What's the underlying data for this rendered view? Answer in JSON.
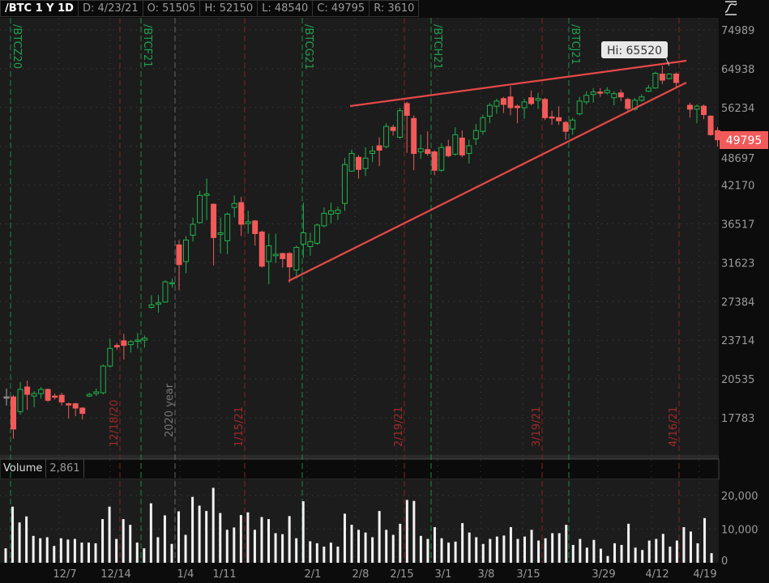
{
  "header": {
    "symbol": "/BTC 1 Y 1D",
    "date": "D: 4/23/21",
    "open": "O: 51505",
    "high": "H: 52150",
    "low": "L: 48540",
    "close": "C: 49795",
    "range": "R: 3610"
  },
  "toolbar": {
    "style_icon": "chart-style-icon"
  },
  "price_panel": {
    "hi_label": "Hi: 65520",
    "last_price": "49795",
    "last_price_color": "#f25a5a",
    "up_color": "#22b14c",
    "down_color": "#f25a5a",
    "trendline_color": "#e84848",
    "y_scale": "log",
    "y_ticks": [
      "74989",
      "64938",
      "56234",
      "48697",
      "42170",
      "36517",
      "31623",
      "27384",
      "23714",
      "20535",
      "17783"
    ],
    "expiry_lines": [
      "/BTCZ20",
      "/BTCF21",
      "/BTCG21",
      "/BTCH21",
      "/BTCJ21"
    ],
    "settlement_lines": [
      "12/18/20",
      "1/15/21",
      "2/19/21",
      "3/19/21",
      "4/16/21"
    ],
    "year_line": "2020 year"
  },
  "chart_data": {
    "type": "candlestick",
    "series_ohlc": [
      [
        19215,
        19815,
        18615,
        19215
      ],
      [
        19215,
        19335,
        16460,
        17060
      ],
      [
        18195,
        20295,
        17995,
        19755
      ],
      [
        19935,
        20415,
        18315,
        19395
      ],
      [
        19275,
        19635,
        18495,
        19455
      ],
      [
        19455,
        19935,
        19095,
        19755
      ],
      [
        19755,
        19815,
        18855,
        18975
      ],
      [
        19275,
        19455,
        19035,
        19215
      ],
      [
        19335,
        19515,
        18615,
        18855
      ],
      [
        18735,
        18795,
        17730,
        18675
      ],
      [
        18735,
        18795,
        17895,
        18435
      ],
      [
        18435,
        18495,
        17680,
        18075
      ],
      [
        19275,
        19515,
        19215,
        19395
      ],
      [
        19455,
        19815,
        19275,
        19575
      ],
      [
        19515,
        21660,
        19395,
        21540
      ],
      [
        21540,
        23850,
        21400,
        22990
      ],
      [
        23250,
        23450,
        22860,
        23120
      ],
      [
        23650,
        24270,
        22064,
        23250
      ],
      [
        23320,
        23714,
        22660,
        23580
      ],
      [
        23650,
        24350,
        22990,
        23714
      ],
      [
        23714,
        24116,
        23054,
        23888
      ],
      [
        26776,
        28000,
        26624,
        27004
      ],
      [
        27080,
        28015,
        26244,
        27232
      ],
      [
        27308,
        29599,
        27232,
        29423
      ],
      [
        29247,
        29775,
        28807,
        29335
      ],
      [
        33736,
        34354,
        28543,
        31359
      ],
      [
        31718,
        34869,
        30391,
        34354
      ],
      [
        34972,
        37332,
        34148,
        36414
      ],
      [
        36636,
        41226,
        36517,
        40518
      ],
      [
        40518,
        43121,
        36990,
        40754
      ],
      [
        39220,
        39338,
        31271,
        34663
      ],
      [
        35075,
        37332,
        32679,
        35281
      ],
      [
        34251,
        38040,
        32591,
        37800
      ],
      [
        38748,
        40518,
        37332,
        39338
      ],
      [
        39456,
        40282,
        34869,
        36414
      ],
      [
        36517,
        38276,
        35178,
        36754
      ],
      [
        36872,
        36990,
        33633,
        35178
      ],
      [
        35384,
        35590,
        31007,
        31183
      ],
      [
        31718,
        35178,
        29159,
        33633
      ],
      [
        32415,
        35178,
        31535,
        32591
      ],
      [
        32679,
        32767,
        31007,
        32063
      ],
      [
        32679,
        32855,
        29335,
        31095
      ],
      [
        30743,
        33633,
        29775,
        33427
      ],
      [
        33839,
        39456,
        32151,
        35281
      ],
      [
        33530,
        35281,
        32415,
        34148
      ],
      [
        33942,
        36517,
        33736,
        36311
      ],
      [
        36208,
        38748,
        35998,
        37922
      ],
      [
        37800,
        39456,
        36517,
        38276
      ],
      [
        37922,
        38866,
        36990,
        38394
      ],
      [
        39338,
        46521,
        38276,
        45433
      ],
      [
        44345,
        48017,
        44209,
        47337
      ],
      [
        46657,
        47065,
        43121,
        44617
      ],
      [
        44753,
        48425,
        43529,
        46521
      ],
      [
        47337,
        48697,
        45841,
        47745
      ],
      [
        48697,
        50264,
        45161,
        47912
      ],
      [
        48540,
        52937,
        48226,
        52309
      ],
      [
        52152,
        52623,
        50578,
        51524
      ],
      [
        50264,
        56077,
        49950,
        55449
      ],
      [
        56946,
        57302,
        47441,
        54507
      ],
      [
        53879,
        54507,
        44481,
        47337
      ],
      [
        47609,
        50735,
        46385,
        48153
      ],
      [
        48017,
        51363,
        46929,
        47337
      ],
      [
        47609,
        47881,
        43665,
        44481
      ],
      [
        44481,
        49172,
        44209,
        48383
      ],
      [
        48540,
        49799,
        46657,
        46929
      ],
      [
        47201,
        52152,
        46929,
        50735
      ],
      [
        50107,
        51524,
        46657,
        47065
      ],
      [
        47337,
        49799,
        45569,
        48697
      ],
      [
        49950,
        52780,
        48854,
        51524
      ],
      [
        51367,
        54664,
        50735,
        54036
      ],
      [
        54350,
        57106,
        52937,
        56572
      ],
      [
        56394,
        57996,
        54821,
        57462
      ],
      [
        57996,
        58352,
        54978,
        56750
      ],
      [
        58352,
        60666,
        54507,
        56077
      ],
      [
        56394,
        56750,
        52937,
        56077
      ],
      [
        56077,
        57996,
        53879,
        57284
      ],
      [
        58174,
        59776,
        56572,
        56928
      ],
      [
        57640,
        59242,
        55763,
        57996
      ],
      [
        57818,
        58174,
        53565,
        54036
      ],
      [
        54193,
        55449,
        52623,
        54036
      ],
      [
        54036,
        56394,
        52623,
        53409
      ],
      [
        53094,
        53409,
        49799,
        51367
      ],
      [
        51838,
        54036,
        50735,
        53565
      ],
      [
        54821,
        58352,
        54507,
        57462
      ],
      [
        57284,
        59598,
        56750,
        58708
      ],
      [
        58886,
        60310,
        57106,
        59420
      ],
      [
        59420,
        60310,
        58352,
        59242
      ],
      [
        59242,
        60488,
        58886,
        59776
      ],
      [
        58174,
        59598,
        56572,
        59064
      ],
      [
        59242,
        59954,
        57462,
        58352
      ],
      [
        57818,
        58174,
        55135,
        55920
      ],
      [
        55763,
        58174,
        55449,
        57640
      ],
      [
        57640,
        58886,
        57284,
        58352
      ],
      [
        59598,
        61022,
        59420,
        60310
      ],
      [
        60310,
        64048,
        60132,
        63692
      ],
      [
        63514,
        65520,
        61200,
        62090
      ],
      [
        62446,
        63692,
        62268,
        63514
      ],
      [
        63514,
        63870,
        60310,
        61556
      ],
      null,
      [
        56572,
        57106,
        54036,
        55763
      ],
      [
        55763,
        56750,
        52937,
        56394
      ],
      [
        56394,
        56750,
        53722,
        54664
      ],
      [
        54350,
        54507,
        50578,
        50735
      ],
      [
        51505,
        52150,
        48540,
        49795
      ]
    ],
    "volume": {
      "label": "Volume",
      "last": "2,861",
      "y_ticks": [
        "20,000",
        "10,000",
        "0"
      ],
      "values": [
        4300,
        16700,
        12000,
        13800,
        8000,
        7300,
        7600,
        5000,
        7300,
        6900,
        7100,
        6000,
        6000,
        5800,
        13000,
        16700,
        7100,
        13000,
        11300,
        6000,
        4300,
        17700,
        7600,
        14100,
        5600,
        15300,
        8300,
        19600,
        17000,
        15400,
        22300,
        14800,
        9800,
        10500,
        14200,
        15000,
        9800,
        13600,
        13000,
        8800,
        8500,
        13900,
        7300,
        18300,
        6400,
        5800,
        4800,
        6000,
        4800,
        14600,
        11300,
        9800,
        9000,
        7600,
        15400,
        9800,
        8300,
        11600,
        18700,
        18400,
        8000,
        7100,
        10600,
        7300,
        6000,
        6300,
        11800,
        9000,
        7600,
        5600,
        7100,
        7800,
        8100,
        10600,
        7100,
        7800,
        9800,
        6600,
        7300,
        8800,
        8800,
        11300,
        5300,
        7100,
        4500,
        6800,
        4200,
        2000,
        5800,
        5300,
        11600,
        4500,
        3800,
        6600,
        7100,
        8600,
        4800,
        6600,
        10600,
        9300,
        5800,
        13300,
        2861
      ]
    },
    "x_tick_labels": [
      "12/7",
      "12/14",
      "1/4",
      "1/11",
      "2/1",
      "2/8",
      "2/15",
      "3/1",
      "3/8",
      "3/15",
      "3/29",
      "4/12",
      "4/19"
    ]
  }
}
